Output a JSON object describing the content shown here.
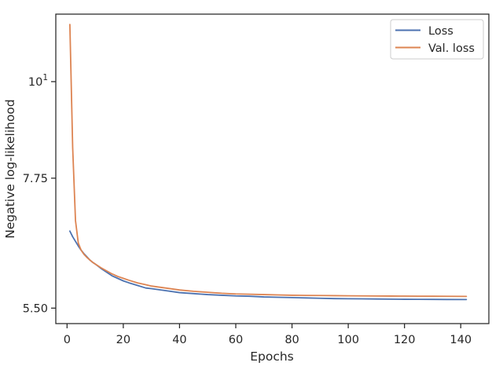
{
  "chart_data": {
    "type": "line",
    "xlabel": "Epochs",
    "ylabel": "Negative log-likelihood",
    "yscale": "log",
    "xlim": [
      -4.0,
      150.0
    ],
    "ylim": [
      5.28,
      11.95
    ],
    "xticks": [
      0,
      20,
      40,
      60,
      80,
      100,
      120,
      140
    ],
    "xtick_labels": [
      "0",
      "20",
      "40",
      "60",
      "80",
      "100",
      "120",
      "140"
    ],
    "yticks": [
      5.5,
      7.75,
      10
    ],
    "ytick_labels": [
      "5.50",
      "7.75",
      "10"
    ],
    "ytick_exponent": "1",
    "grid": false,
    "legend_position": "top-right",
    "series": [
      {
        "name": "Loss",
        "color": "#4c72b0",
        "x": [
          1,
          2,
          3,
          4,
          5,
          6,
          7,
          8,
          9,
          10,
          12,
          14,
          16,
          18,
          20,
          22,
          25,
          28,
          30,
          35,
          40,
          45,
          50,
          55,
          60,
          65,
          70,
          75,
          80,
          85,
          90,
          95,
          100,
          105,
          110,
          115,
          120,
          125,
          130,
          135,
          142
        ],
        "y": [
          6.74,
          6.64,
          6.56,
          6.48,
          6.41,
          6.35,
          6.3,
          6.25,
          6.21,
          6.18,
          6.11,
          6.05,
          5.99,
          5.95,
          5.91,
          5.88,
          5.84,
          5.8,
          5.79,
          5.76,
          5.73,
          5.715,
          5.7,
          5.69,
          5.68,
          5.675,
          5.665,
          5.66,
          5.655,
          5.65,
          5.645,
          5.64,
          5.638,
          5.636,
          5.634,
          5.632,
          5.63,
          5.629,
          5.628,
          5.627,
          5.626
        ]
      },
      {
        "name": "Val. loss",
        "color": "#dd8452",
        "x": [
          1,
          2,
          3,
          4,
          5,
          6,
          7,
          8,
          9,
          10,
          12,
          14,
          16,
          18,
          20,
          22,
          25,
          28,
          30,
          35,
          40,
          45,
          50,
          55,
          60,
          65,
          70,
          75,
          80,
          85,
          90,
          95,
          100,
          105,
          110,
          115,
          120,
          125,
          130,
          135,
          142
        ],
        "y": [
          11.63,
          8.4,
          6.93,
          6.53,
          6.41,
          6.34,
          6.29,
          6.25,
          6.21,
          6.18,
          6.12,
          6.07,
          6.02,
          5.98,
          5.95,
          5.92,
          5.88,
          5.85,
          5.83,
          5.8,
          5.77,
          5.75,
          5.735,
          5.72,
          5.71,
          5.705,
          5.7,
          5.695,
          5.69,
          5.688,
          5.686,
          5.684,
          5.682,
          5.68,
          5.679,
          5.678,
          5.677,
          5.676,
          5.675,
          5.674,
          5.673
        ]
      }
    ]
  }
}
